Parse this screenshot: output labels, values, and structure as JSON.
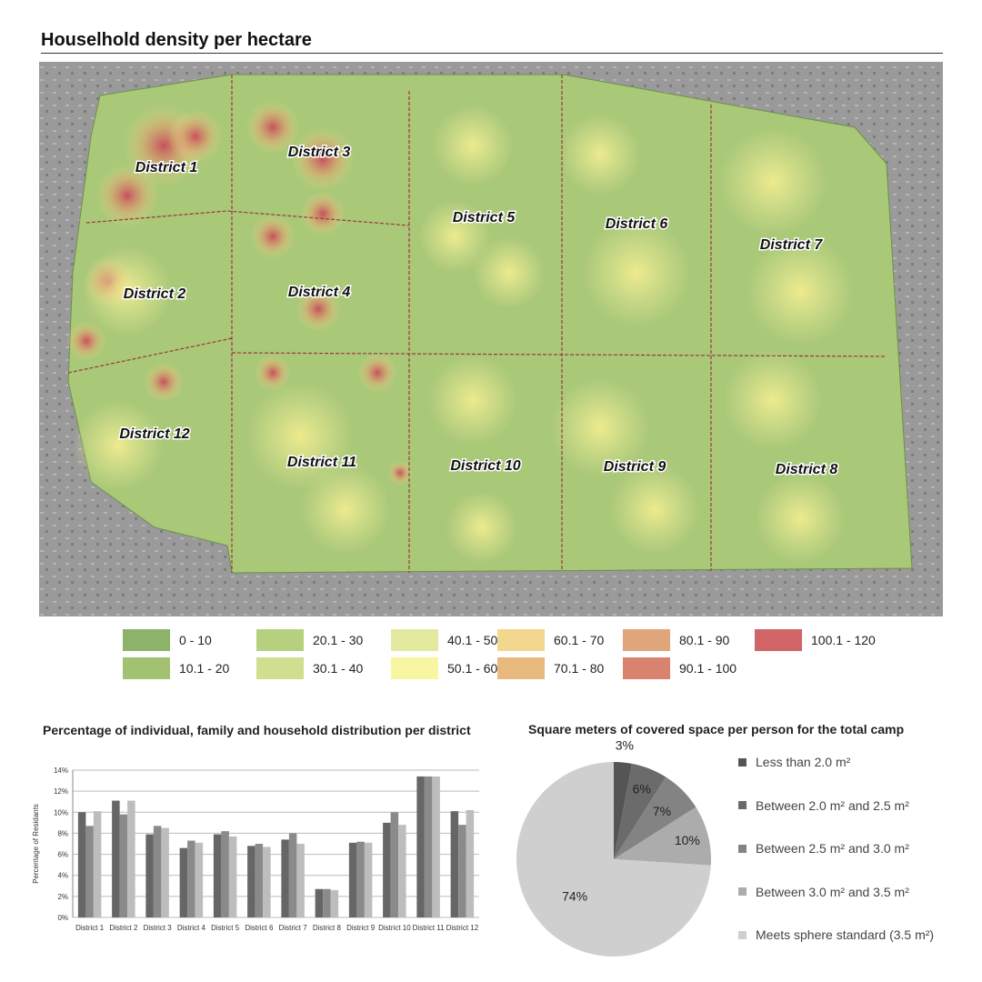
{
  "map": {
    "title": "Houselhold density per hectare",
    "districts": [
      "District 1",
      "District 2",
      "District 3",
      "District 4",
      "District 5",
      "District 6",
      "District 7",
      "District 8",
      "District 9",
      "District 10",
      "District 11",
      "District 12"
    ],
    "legend": [
      {
        "label": "0 - 10",
        "color": "#8db36a"
      },
      {
        "label": "10.1 - 20",
        "color": "#a3c271"
      },
      {
        "label": "20.1 - 30",
        "color": "#b7d07f"
      },
      {
        "label": "30.1 - 40",
        "color": "#cfde8f"
      },
      {
        "label": "40.1 - 50",
        "color": "#e3eaa0"
      },
      {
        "label": "50.1 - 60",
        "color": "#f8f6a0"
      },
      {
        "label": "60.1 - 70",
        "color": "#f1d88e"
      },
      {
        "label": "70.1 - 80",
        "color": "#e8b97d"
      },
      {
        "label": "80.1 - 90",
        "color": "#e0a57a"
      },
      {
        "label": "90.1 - 100",
        "color": "#d9836f"
      },
      {
        "label": "100.1 - 120",
        "color": "#d06467"
      }
    ]
  },
  "chart_data": [
    {
      "type": "bar",
      "title": "Percentage of individual, family and household distribution per district",
      "ylabel": "Percentage of Residants",
      "ylim": [
        0,
        14
      ],
      "yticks": [
        "0%",
        "2%",
        "4%",
        "6%",
        "8%",
        "10%",
        "12%",
        "14%"
      ],
      "grid": true,
      "categories": [
        "District 1",
        "District 2",
        "District 3",
        "District 4",
        "District 5",
        "District 6",
        "District 7",
        "District 8",
        "District 9",
        "District 10",
        "District 11",
        "District 12"
      ],
      "series": [
        {
          "color": "#666666",
          "values": [
            10.0,
            11.1,
            7.9,
            6.6,
            7.9,
            6.8,
            7.4,
            2.7,
            7.1,
            9.0,
            13.4,
            10.1
          ]
        },
        {
          "color": "#8a8a8a",
          "values": [
            8.7,
            9.8,
            8.7,
            7.3,
            8.2,
            7.0,
            8.0,
            2.7,
            7.2,
            10.0,
            13.4,
            8.8
          ]
        },
        {
          "color": "#bdbdbd",
          "values": [
            10.1,
            11.1,
            8.5,
            7.1,
            7.7,
            6.7,
            7.0,
            2.6,
            7.1,
            8.8,
            13.4,
            10.2
          ]
        }
      ]
    },
    {
      "type": "pie",
      "title": "Square meters of covered space per person for the total camp",
      "slices": [
        {
          "label": "Less than 2.0 m²",
          "value": 3,
          "data_label": "3%",
          "color": "#555555"
        },
        {
          "label": "Between 2.0 m² and 2.5 m²",
          "value": 6,
          "data_label": "6%",
          "color": "#6b6b6b"
        },
        {
          "label": "Between 2.5 m² and 3.0 m²",
          "value": 7,
          "data_label": "7%",
          "color": "#838383"
        },
        {
          "label": "Between 3.0 m² and 3.5 m²",
          "value": 10,
          "data_label": "10%",
          "color": "#acacac"
        },
        {
          "label": "Meets sphere standard  (3.5 m²)",
          "value": 74,
          "data_label": "74%",
          "color": "#cfcfcf"
        }
      ]
    }
  ]
}
